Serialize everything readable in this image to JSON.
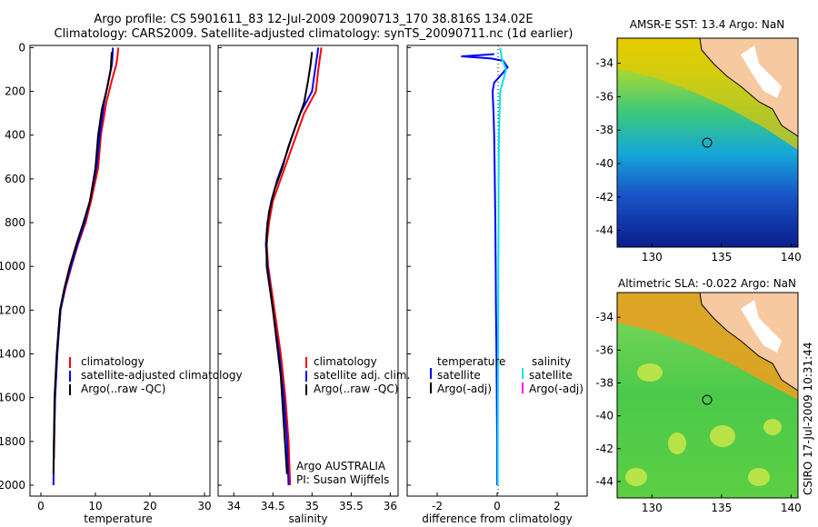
{
  "header": {
    "line1": "Argo profile: CS 5901611_83 12-Jul-2009 20090713_170 38.816S 134.02E",
    "line2": "Climatology: CARS2009. Satellite-adjusted climatology: synTS_20090711.nc (1d earlier)"
  },
  "colors": {
    "climatology": "#ff0000",
    "satellite": "#0000ff",
    "argo": "#000000",
    "salinity_satellite": "#00e5ee",
    "salinity_argo": "#ff00ff"
  },
  "chart_data": [
    {
      "type": "line",
      "xlabel": "temperature",
      "xlim": [
        -2,
        31
      ],
      "ylim": [
        2050,
        -10
      ],
      "xticks": [
        0,
        10,
        20,
        30
      ],
      "yticks": [
        0,
        200,
        400,
        600,
        800,
        1000,
        1200,
        1400,
        1600,
        1800,
        2000
      ],
      "legend": {
        "placement": "bottom-right",
        "entries": [
          "climatology",
          "satellite-adjusted climatology",
          "Argo(..raw -QC)"
        ]
      },
      "series": [
        {
          "name": "climatology",
          "color": "#ff0000",
          "x": [
            14.2,
            14.0,
            13.8,
            13.0,
            12.0,
            11.0,
            10.5,
            9.2,
            8.2,
            6.8,
            5.6,
            4.5,
            3.6,
            3.0,
            2.6,
            2.45,
            2.4
          ],
          "y": [
            0,
            50,
            80,
            150,
            250,
            400,
            550,
            700,
            800,
            900,
            1000,
            1100,
            1200,
            1400,
            1600,
            1800,
            1880
          ]
        },
        {
          "name": "satellite-adjusted climatology",
          "color": "#0000ff",
          "x": [
            13.2,
            13.1,
            13.0,
            12.4,
            11.6,
            10.8,
            10.2,
            9.0,
            8.0,
            6.7,
            5.5,
            4.4,
            3.6,
            3.0,
            2.6,
            2.4,
            2.3
          ],
          "y": [
            0,
            50,
            80,
            150,
            250,
            400,
            550,
            700,
            800,
            900,
            1000,
            1100,
            1200,
            1400,
            1600,
            1800,
            2000
          ]
        },
        {
          "name": "Argo(..raw -QC)",
          "color": "#000000",
          "x": [
            13.0,
            12.8,
            12.2,
            11.2,
            10.5,
            10.0,
            9.0,
            7.8,
            6.5,
            5.3,
            4.3,
            3.5,
            2.9,
            2.5,
            2.3
          ],
          "y": [
            20,
            100,
            180,
            280,
            400,
            550,
            700,
            800,
            900,
            1000,
            1100,
            1200,
            1400,
            1600,
            1950
          ]
        }
      ]
    },
    {
      "type": "line",
      "xlabel": "salinity",
      "xlim": [
        33.8,
        36.1
      ],
      "ylim": [
        2050,
        -10
      ],
      "xticks": [
        34,
        34.5,
        35,
        35.5,
        36
      ],
      "yticks": [
        0,
        200,
        400,
        600,
        800,
        1000,
        1200,
        1400,
        1600,
        1800,
        2000
      ],
      "legend": {
        "placement": "bottom-right",
        "entries": [
          "climatology",
          "satellite adj. clim.",
          "Argo(..raw -QC)"
        ]
      },
      "annotations": [
        "Argo AUSTRALIA",
        "PI: Susan Wijffels"
      ],
      "series": [
        {
          "name": "climatology",
          "color": "#ff0000",
          "x": [
            35.12,
            35.1,
            35.08,
            35.05,
            34.9,
            34.8,
            34.7,
            34.6,
            34.5,
            34.45,
            34.42,
            34.44,
            34.52,
            34.6,
            34.66,
            34.7,
            34.72
          ],
          "y": [
            0,
            50,
            100,
            200,
            300,
            400,
            500,
            600,
            700,
            800,
            900,
            1000,
            1200,
            1400,
            1600,
            1800,
            2000
          ]
        },
        {
          "name": "satellite adj. clim.",
          "color": "#0000ff",
          "x": [
            35.08,
            35.06,
            35.04,
            35.0,
            34.85,
            34.75,
            34.66,
            34.56,
            34.48,
            34.43,
            34.41,
            34.43,
            34.5,
            34.58,
            34.64,
            34.68,
            34.7
          ],
          "y": [
            0,
            50,
            100,
            200,
            300,
            400,
            500,
            600,
            700,
            800,
            900,
            1000,
            1200,
            1400,
            1600,
            1800,
            2000
          ]
        },
        {
          "name": "Argo(..raw -QC)",
          "color": "#000000",
          "x": [
            35.0,
            34.98,
            34.95,
            34.9,
            34.8,
            34.7,
            34.62,
            34.52,
            34.45,
            34.42,
            34.42,
            34.5,
            34.6,
            34.68
          ],
          "y": [
            20,
            80,
            150,
            250,
            350,
            450,
            550,
            650,
            750,
            850,
            1000,
            1200,
            1500,
            1950
          ]
        }
      ]
    },
    {
      "type": "line",
      "xlabel": "difference from climatology",
      "xlim": [
        -3,
        3
      ],
      "ylim": [
        2050,
        -10
      ],
      "xticks": [
        -2,
        0,
        2
      ],
      "yticks": [
        0,
        200,
        400,
        600,
        800,
        1000,
        1200,
        1400,
        1600,
        1800,
        2000
      ],
      "legend": {
        "placement": "bottom",
        "temperature_header": "temperature",
        "salinity_header": "salinity",
        "entries": [
          "satellite",
          "Argo(-adj)",
          "satellite",
          "Argo(-adj)"
        ]
      },
      "series": [
        {
          "name": "satellite",
          "group": "temperature",
          "color": "#0000ff",
          "x": [
            -0.1,
            -1.2,
            -0.2,
            0.2,
            0.35,
            0.1,
            -0.1,
            -0.15,
            -0.12,
            -0.1,
            -0.08,
            -0.06,
            -0.05,
            -0.04,
            -0.02,
            0.0,
            0.0
          ],
          "y": [
            30,
            40,
            50,
            60,
            90,
            130,
            160,
            200,
            300,
            400,
            600,
            800,
            1000,
            1200,
            1400,
            1800,
            2000
          ]
        },
        {
          "name": "satellite",
          "group": "salinity",
          "color": "#00e5ee",
          "x": [
            0.1,
            0.15,
            0.3,
            0.2,
            0.1,
            0.08,
            0.06,
            0.05,
            0.05,
            0.04,
            0.03,
            0.02,
            0.02
          ],
          "y": [
            0,
            50,
            100,
            150,
            200,
            300,
            400,
            600,
            800,
            1000,
            1400,
            1800,
            2000
          ]
        }
      ]
    },
    {
      "type": "heatmap",
      "title": "AMSR-E SST: 13.4  Argo: NaN",
      "xlim": [
        127.5,
        140.5
      ],
      "ylim": [
        -45,
        -32.5
      ],
      "xticks": [
        130,
        135,
        140
      ],
      "yticks": [
        -34,
        -36,
        -38,
        -40,
        -42,
        -44
      ],
      "marker": {
        "lon": 134.02,
        "lat": -38.816
      }
    },
    {
      "type": "heatmap",
      "title": "Altimetric SLA: -0.022  Argo: NaN",
      "xlim": [
        127.5,
        140.5
      ],
      "ylim": [
        -45,
        -32.5
      ],
      "xticks": [
        130,
        135,
        140
      ],
      "yticks": [
        -34,
        -36,
        -38,
        -40,
        -42,
        -44
      ],
      "marker": {
        "lon": 134.02,
        "lat": -38.816
      }
    }
  ],
  "footer": {
    "stamp": "CSIRO 17-Jul-2009 10:31:44"
  }
}
